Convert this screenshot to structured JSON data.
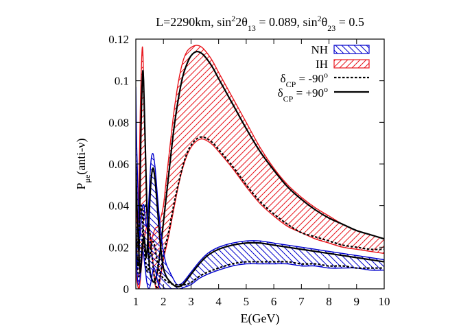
{
  "chart_data": {
    "type": "area",
    "title_parts": {
      "p1": "L=2290km, sin",
      "sup1": "2",
      "p2": "2θ",
      "sub1": "13",
      "p3": " = 0.089, sin",
      "sup2": "2",
      "p4": "θ",
      "sub2": "23",
      "p5": " = 0.5"
    },
    "xlabel": "E(GeV)",
    "ylabel_parts": {
      "main": "P",
      "sub": "μe",
      "rest": "(anti-ν)"
    },
    "xlim": [
      1,
      10
    ],
    "ylim": [
      0,
      0.12
    ],
    "x_ticks": [
      1,
      2,
      3,
      4,
      5,
      6,
      7,
      8,
      9,
      10
    ],
    "y_ticks": [
      0,
      0.02,
      0.04,
      0.06,
      0.08,
      0.1,
      0.12
    ],
    "x_tick_labels": [
      "1",
      "2",
      "3",
      "4",
      "5",
      "6",
      "7",
      "8",
      "9",
      "10"
    ],
    "y_tick_labels": [
      "0",
      "0.02",
      "0.04",
      "0.06",
      "0.08",
      "0.1",
      "0.12"
    ],
    "grid": false,
    "legend_position": "top-right",
    "legend": [
      {
        "label": "NH",
        "kind": "band",
        "color": "#0000cc",
        "hatch": "backslash"
      },
      {
        "label": "IH",
        "kind": "band",
        "color": "#e8141b",
        "hatch": "slash"
      },
      {
        "label_main": "δ",
        "label_sub": "CP",
        "label_rest": " = -90",
        "label_sup": "o",
        "kind": "line",
        "color": "#000000",
        "dash": true
      },
      {
        "label_main": "δ",
        "label_sub": "CP",
        "label_rest": " = +90",
        "label_sup": "o",
        "kind": "line",
        "color": "#000000",
        "dash": false
      }
    ],
    "series": [
      {
        "name": "IH",
        "color": "#e8141b",
        "upper": {
          "x": [
            1.0,
            1.05,
            1.1,
            1.16,
            1.22,
            1.26,
            1.32,
            1.4,
            1.5,
            1.6,
            1.7,
            1.8,
            1.9,
            2.0,
            2.1,
            2.2,
            2.3,
            2.4,
            2.55,
            2.7,
            2.85,
            3.0,
            3.2,
            3.4,
            3.6,
            3.8,
            4.0,
            4.5,
            5.0,
            5.5,
            6.0,
            6.5,
            7.0,
            7.5,
            8.0,
            8.5,
            9.0,
            9.5,
            10.0
          ],
          "y": [
            0.045,
            0.03,
            0.04,
            0.085,
            0.113,
            0.112,
            0.08,
            0.04,
            0.02,
            0.025,
            0.029,
            0.03,
            0.034,
            0.04,
            0.052,
            0.064,
            0.076,
            0.087,
            0.1,
            0.109,
            0.114,
            0.116,
            0.117,
            0.116,
            0.113,
            0.109,
            0.104,
            0.092,
            0.08,
            0.068,
            0.058,
            0.05,
            0.044,
            0.039,
            0.035,
            0.031,
            0.028,
            0.026,
            0.024
          ]
        },
        "lower": {
          "x": [
            1.0,
            1.05,
            1.12,
            1.2,
            1.26,
            1.32,
            1.4,
            1.5,
            1.6,
            1.7,
            1.8,
            1.9,
            2.0,
            2.1,
            2.2,
            2.3,
            2.4,
            2.55,
            2.7,
            2.85,
            3.0,
            3.2,
            3.4,
            3.6,
            3.8,
            4.0,
            4.5,
            5.0,
            5.5,
            6.0,
            6.5,
            7.0,
            7.5,
            8.0,
            8.5,
            9.0,
            9.5,
            10.0
          ],
          "y": [
            0.008,
            0.003,
            0.0,
            0.01,
            0.02,
            0.025,
            0.03,
            0.028,
            0.015,
            0.002,
            0.0,
            0.006,
            0.014,
            0.02,
            0.026,
            0.033,
            0.04,
            0.05,
            0.058,
            0.064,
            0.068,
            0.071,
            0.072,
            0.071,
            0.069,
            0.066,
            0.058,
            0.049,
            0.041,
            0.035,
            0.03,
            0.027,
            0.024,
            0.022,
            0.02,
            0.019,
            0.018,
            0.017
          ]
        },
        "cp_plus90": {
          "x": [
            1.0,
            1.06,
            1.12,
            1.18,
            1.24,
            1.28,
            1.34,
            1.42,
            1.5,
            1.6,
            1.7,
            1.8,
            1.9,
            2.0,
            2.1,
            2.2,
            2.3,
            2.4,
            2.55,
            2.7,
            2.85,
            3.0,
            3.2,
            3.4,
            3.6,
            3.8,
            4.0,
            4.5,
            5.0,
            5.5,
            6.0,
            6.5,
            7.0,
            7.5,
            8.0,
            8.5,
            9.0,
            9.5,
            10.0
          ],
          "y": [
            0.03,
            0.012,
            0.02,
            0.072,
            0.102,
            0.1,
            0.07,
            0.03,
            0.01,
            0.004,
            0.004,
            0.01,
            0.02,
            0.032,
            0.044,
            0.056,
            0.068,
            0.079,
            0.092,
            0.102,
            0.108,
            0.112,
            0.114,
            0.113,
            0.11,
            0.106,
            0.101,
            0.089,
            0.077,
            0.066,
            0.057,
            0.049,
            0.043,
            0.038,
            0.034,
            0.031,
            0.028,
            0.026,
            0.024
          ]
        },
        "cp_minus90": {
          "x": [
            1.0,
            1.05,
            1.12,
            1.2,
            1.26,
            1.32,
            1.4,
            1.5,
            1.6,
            1.7,
            1.8,
            1.9,
            2.0,
            2.1,
            2.2,
            2.3,
            2.4,
            2.55,
            2.7,
            2.85,
            3.0,
            3.2,
            3.4,
            3.6,
            3.8,
            4.0,
            4.5,
            5.0,
            5.5,
            6.0,
            6.5,
            7.0,
            7.5,
            8.0,
            8.5,
            9.0,
            9.5,
            10.0
          ],
          "y": [
            0.02,
            0.01,
            0.006,
            0.016,
            0.03,
            0.04,
            0.038,
            0.028,
            0.014,
            0.003,
            0.001,
            0.008,
            0.016,
            0.022,
            0.028,
            0.035,
            0.042,
            0.051,
            0.059,
            0.065,
            0.069,
            0.072,
            0.073,
            0.072,
            0.07,
            0.067,
            0.059,
            0.05,
            0.042,
            0.036,
            0.031,
            0.027,
            0.025,
            0.023,
            0.021,
            0.02,
            0.019,
            0.019
          ]
        }
      },
      {
        "name": "NH",
        "color": "#0000cc",
        "upper": {
          "x": [
            1.0,
            1.03,
            1.08,
            1.15,
            1.22,
            1.3,
            1.38,
            1.46,
            1.54,
            1.62,
            1.7,
            1.8,
            1.9,
            2.0,
            2.1,
            2.2,
            2.35,
            2.5,
            2.7,
            3.0,
            3.3,
            3.6,
            4.0,
            4.5,
            5.0,
            5.5,
            6.0,
            6.5,
            7.0,
            7.5,
            8.0,
            8.5,
            9.0,
            9.5,
            10.0
          ],
          "y": [
            0.097,
            0.07,
            0.045,
            0.025,
            0.038,
            0.04,
            0.03,
            0.04,
            0.06,
            0.065,
            0.058,
            0.042,
            0.028,
            0.018,
            0.012,
            0.009,
            0.005,
            0.002,
            0.003,
            0.008,
            0.013,
            0.017,
            0.02,
            0.022,
            0.023,
            0.023,
            0.022,
            0.021,
            0.02,
            0.019,
            0.018,
            0.017,
            0.016,
            0.015,
            0.014
          ]
        },
        "lower": {
          "x": [
            1.0,
            1.04,
            1.1,
            1.18,
            1.25,
            1.32,
            1.4,
            1.48,
            1.56,
            1.64,
            1.72,
            1.8,
            1.9,
            2.0,
            2.2,
            2.4,
            2.6,
            2.8,
            3.0,
            3.3,
            3.6,
            4.0,
            4.5,
            5.0,
            5.5,
            6.0,
            6.5,
            7.0,
            7.5,
            8.0,
            8.5,
            9.0,
            9.5,
            10.0
          ],
          "y": [
            0.02,
            0.008,
            0.002,
            0.008,
            0.018,
            0.012,
            0.003,
            0.0,
            0.004,
            0.01,
            0.008,
            0.003,
            0.0,
            0.0,
            0.0,
            0.0,
            0.0,
            0.001,
            0.002,
            0.005,
            0.007,
            0.009,
            0.011,
            0.012,
            0.012,
            0.012,
            0.012,
            0.011,
            0.011,
            0.01,
            0.01,
            0.01,
            0.009,
            0.009
          ]
        },
        "cp_plus90": {
          "x": [
            1.0,
            1.04,
            1.1,
            1.16,
            1.22,
            1.3,
            1.38,
            1.46,
            1.54,
            1.62,
            1.7,
            1.8,
            1.9,
            2.0,
            2.1,
            2.2,
            2.35,
            2.5,
            2.7,
            3.0,
            3.3,
            3.6,
            4.0,
            4.5,
            5.0,
            5.5,
            6.0,
            6.5,
            7.0,
            7.5,
            8.0,
            8.5,
            9.0,
            9.5,
            10.0
          ],
          "y": [
            0.06,
            0.04,
            0.02,
            0.008,
            0.018,
            0.025,
            0.015,
            0.03,
            0.05,
            0.058,
            0.052,
            0.036,
            0.02,
            0.01,
            0.006,
            0.004,
            0.002,
            0.001,
            0.002,
            0.007,
            0.012,
            0.016,
            0.019,
            0.021,
            0.022,
            0.022,
            0.021,
            0.02,
            0.019,
            0.018,
            0.017,
            0.016,
            0.015,
            0.014,
            0.013
          ]
        },
        "cp_minus90": {
          "x": [
            1.0,
            1.05,
            1.12,
            1.2,
            1.26,
            1.34,
            1.42,
            1.5,
            1.58,
            1.66,
            1.74,
            1.82,
            1.9,
            2.0,
            2.2,
            2.4,
            2.6,
            2.8,
            3.0,
            3.3,
            3.6,
            4.0,
            4.5,
            5.0,
            5.5,
            6.0,
            6.5,
            7.0,
            7.5,
            8.0,
            8.5,
            9.0,
            9.5,
            10.0
          ],
          "y": [
            0.03,
            0.02,
            0.03,
            0.04,
            0.03,
            0.015,
            0.008,
            0.015,
            0.022,
            0.022,
            0.016,
            0.01,
            0.007,
            0.005,
            0.003,
            0.002,
            0.002,
            0.002,
            0.003,
            0.006,
            0.008,
            0.01,
            0.012,
            0.013,
            0.013,
            0.013,
            0.013,
            0.012,
            0.012,
            0.011,
            0.011,
            0.01,
            0.01,
            0.01
          ]
        }
      }
    ]
  }
}
